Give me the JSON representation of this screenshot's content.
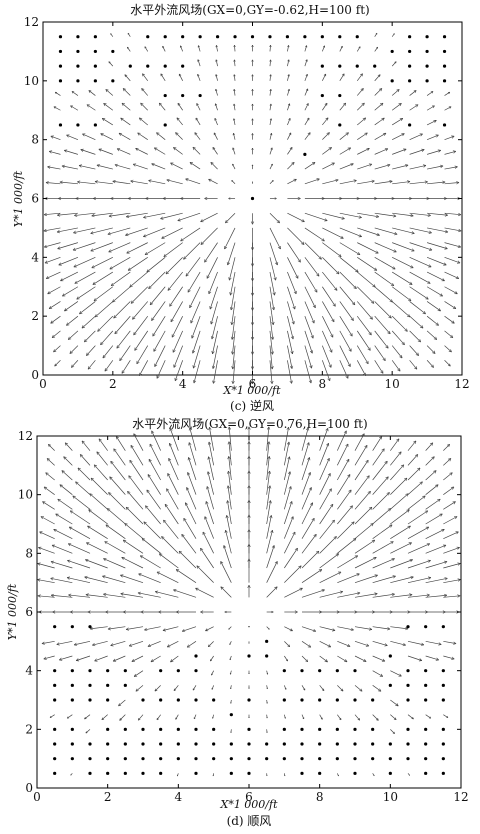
{
  "chart_data": [
    {
      "type": "quiver",
      "title": "水平外流风场(GX=0,GY=-0.62,H=100 ft)",
      "xlabel": "X*1 000/ft",
      "ylabel": "Y*1 000/ft",
      "caption": "(c) 逆风",
      "xlim": [
        0,
        12
      ],
      "ylim": [
        0,
        12
      ],
      "xticks": [
        "0",
        "2",
        "4",
        "6",
        "8",
        "10",
        "12"
      ],
      "yticks": [
        "0",
        "2",
        "4",
        "6",
        "8",
        "10",
        "12"
      ],
      "grid": false,
      "legend": "none",
      "field": {
        "grid_spacing": 0.5,
        "center": [
          6,
          6
        ],
        "gx": 0,
        "gy": -0.62,
        "pattern": "radial outflow from center; strongest arrows in lower half"
      },
      "zero_vector_points": [
        [
          0.5,
          11.5
        ],
        [
          1.0,
          11.5
        ],
        [
          1.5,
          11.5
        ],
        [
          3.0,
          11.5
        ],
        [
          3.5,
          11.5
        ],
        [
          4.0,
          11.5
        ],
        [
          4.5,
          11.5
        ],
        [
          5.0,
          11.5
        ],
        [
          5.5,
          11.5
        ],
        [
          6.0,
          11.5
        ],
        [
          6.5,
          11.5
        ],
        [
          7.0,
          11.5
        ],
        [
          7.5,
          11.5
        ],
        [
          8.0,
          11.5
        ],
        [
          8.5,
          11.5
        ],
        [
          9.0,
          11.5
        ],
        [
          10.5,
          11.5
        ],
        [
          11.0,
          11.5
        ],
        [
          11.5,
          11.5
        ],
        [
          0.5,
          11.0
        ],
        [
          1.0,
          11.0
        ],
        [
          1.5,
          11.0
        ],
        [
          2.0,
          11.0
        ],
        [
          10.0,
          11.0
        ],
        [
          10.5,
          11.0
        ],
        [
          11.0,
          11.0
        ],
        [
          11.5,
          11.0
        ],
        [
          0.5,
          10.5
        ],
        [
          1.0,
          10.5
        ],
        [
          1.5,
          10.5
        ],
        [
          2.5,
          10.5
        ],
        [
          3.0,
          10.5
        ],
        [
          3.5,
          10.5
        ],
        [
          4.0,
          10.5
        ],
        [
          8.0,
          10.5
        ],
        [
          8.5,
          10.5
        ],
        [
          9.0,
          10.5
        ],
        [
          9.5,
          10.5
        ],
        [
          10.5,
          10.5
        ],
        [
          11.0,
          10.5
        ],
        [
          11.5,
          10.5
        ],
        [
          0.5,
          10.0
        ],
        [
          1.0,
          10.0
        ],
        [
          1.5,
          10.0
        ],
        [
          2.0,
          10.0
        ],
        [
          10.0,
          10.0
        ],
        [
          10.5,
          10.0
        ],
        [
          11.0,
          10.0
        ],
        [
          11.5,
          10.0
        ],
        [
          3.5,
          9.5
        ],
        [
          4.0,
          9.5
        ],
        [
          4.5,
          9.5
        ],
        [
          8.0,
          9.5
        ],
        [
          8.5,
          9.5
        ],
        [
          0.5,
          8.5
        ],
        [
          1.0,
          8.5
        ],
        [
          1.5,
          8.5
        ],
        [
          3.5,
          8.5
        ],
        [
          8.5,
          8.5
        ],
        [
          10.5,
          8.5
        ],
        [
          11.5,
          8.5
        ],
        [
          7.5,
          7.5
        ],
        [
          6.0,
          6.0
        ]
      ]
    },
    {
      "type": "quiver",
      "title": "水平外流风场(GX=0,GY=0.76,H=100 ft)",
      "xlabel": "X*1 000/ft",
      "ylabel": "Y*1 000/ft",
      "caption": "(d) 顺风",
      "xlim": [
        0,
        12
      ],
      "ylim": [
        0,
        12
      ],
      "xticks": [
        "0",
        "2",
        "4",
        "6",
        "8",
        "10",
        "12"
      ],
      "yticks": [
        "0",
        "2",
        "4",
        "6",
        "8",
        "10",
        "12"
      ],
      "grid": false,
      "legend": "none",
      "field": {
        "grid_spacing": 0.5,
        "center": [
          6,
          6
        ],
        "gx": 0,
        "gy": 0.76,
        "pattern": "radial outflow from center; strongest arrows in upper half"
      },
      "zero_vector_points": [
        [
          0.5,
          5.5
        ],
        [
          1.0,
          5.5
        ],
        [
          1.5,
          5.5
        ],
        [
          10.5,
          5.5
        ],
        [
          11.0,
          5.5
        ],
        [
          11.5,
          5.5
        ],
        [
          6.5,
          5.0
        ],
        [
          4.5,
          4.5
        ],
        [
          6.0,
          4.5
        ],
        [
          6.5,
          4.5
        ],
        [
          10.0,
          4.5
        ],
        [
          0.5,
          4.0
        ],
        [
          1.0,
          4.0
        ],
        [
          1.5,
          4.0
        ],
        [
          2.0,
          4.0
        ],
        [
          2.5,
          4.0
        ],
        [
          3.5,
          4.0
        ],
        [
          4.0,
          4.0
        ],
        [
          4.5,
          4.0
        ],
        [
          7.0,
          4.0
        ],
        [
          7.5,
          4.0
        ],
        [
          8.0,
          4.0
        ],
        [
          8.5,
          4.0
        ],
        [
          9.0,
          4.0
        ],
        [
          10.5,
          4.0
        ],
        [
          11.0,
          4.0
        ],
        [
          11.5,
          4.0
        ],
        [
          0.5,
          3.5
        ],
        [
          1.0,
          3.5
        ],
        [
          1.5,
          3.5
        ],
        [
          2.0,
          3.5
        ],
        [
          2.5,
          3.5
        ],
        [
          10.0,
          3.5
        ],
        [
          10.5,
          3.5
        ],
        [
          11.0,
          3.5
        ],
        [
          11.5,
          3.5
        ],
        [
          0.5,
          3.0
        ],
        [
          1.0,
          3.0
        ],
        [
          1.5,
          3.0
        ],
        [
          2.0,
          3.0
        ],
        [
          3.0,
          3.0
        ],
        [
          3.5,
          3.0
        ],
        [
          4.0,
          3.0
        ],
        [
          4.5,
          3.0
        ],
        [
          5.0,
          3.0
        ],
        [
          6.0,
          3.0
        ],
        [
          7.0,
          3.0
        ],
        [
          7.5,
          3.0
        ],
        [
          8.0,
          3.0
        ],
        [
          8.5,
          3.0
        ],
        [
          9.0,
          3.0
        ],
        [
          9.5,
          3.0
        ],
        [
          10.5,
          3.0
        ],
        [
          11.0,
          3.0
        ],
        [
          11.5,
          3.0
        ],
        [
          5.5,
          2.5
        ],
        [
          0.5,
          2.0
        ],
        [
          1.0,
          2.0
        ],
        [
          2.0,
          2.0
        ],
        [
          2.5,
          2.0
        ],
        [
          3.0,
          2.0
        ],
        [
          3.5,
          2.0
        ],
        [
          4.0,
          2.0
        ],
        [
          4.5,
          2.0
        ],
        [
          5.0,
          2.0
        ],
        [
          6.0,
          2.0
        ],
        [
          7.0,
          2.0
        ],
        [
          7.5,
          2.0
        ],
        [
          8.0,
          2.0
        ],
        [
          8.5,
          2.0
        ],
        [
          9.0,
          2.0
        ],
        [
          9.5,
          2.0
        ],
        [
          10.5,
          2.0
        ],
        [
          11.0,
          2.0
        ],
        [
          11.5,
          2.0
        ],
        [
          0.5,
          1.5
        ],
        [
          1.0,
          1.5
        ],
        [
          1.5,
          1.5
        ],
        [
          2.0,
          1.5
        ],
        [
          2.5,
          1.5
        ],
        [
          3.0,
          1.5
        ],
        [
          3.5,
          1.5
        ],
        [
          4.0,
          1.5
        ],
        [
          4.5,
          1.5
        ],
        [
          5.0,
          1.5
        ],
        [
          5.5,
          1.5
        ],
        [
          6.0,
          1.5
        ],
        [
          6.5,
          1.5
        ],
        [
          7.0,
          1.5
        ],
        [
          7.5,
          1.5
        ],
        [
          8.0,
          1.5
        ],
        [
          8.5,
          1.5
        ],
        [
          9.0,
          1.5
        ],
        [
          9.5,
          1.5
        ],
        [
          10.0,
          1.5
        ],
        [
          10.5,
          1.5
        ],
        [
          11.0,
          1.5
        ],
        [
          11.5,
          1.5
        ],
        [
          0.5,
          1.0
        ],
        [
          1.0,
          1.0
        ],
        [
          1.5,
          1.0
        ],
        [
          2.0,
          1.0
        ],
        [
          2.5,
          1.0
        ],
        [
          3.0,
          1.0
        ],
        [
          3.5,
          1.0
        ],
        [
          4.0,
          1.0
        ],
        [
          4.5,
          1.0
        ],
        [
          5.0,
          1.0
        ],
        [
          5.5,
          1.0
        ],
        [
          6.0,
          1.0
        ],
        [
          6.5,
          1.0
        ],
        [
          7.0,
          1.0
        ],
        [
          7.5,
          1.0
        ],
        [
          8.0,
          1.0
        ],
        [
          8.5,
          1.0
        ],
        [
          9.0,
          1.0
        ],
        [
          9.5,
          1.0
        ],
        [
          10.0,
          1.0
        ],
        [
          10.5,
          1.0
        ],
        [
          11.0,
          1.0
        ],
        [
          11.5,
          1.0
        ],
        [
          0.5,
          0.5
        ],
        [
          1.5,
          0.5
        ],
        [
          2.0,
          0.5
        ],
        [
          2.5,
          0.5
        ],
        [
          3.0,
          0.5
        ],
        [
          3.5,
          0.5
        ],
        [
          4.5,
          0.5
        ],
        [
          5.5,
          0.5
        ],
        [
          6.0,
          0.5
        ],
        [
          7.5,
          0.5
        ],
        [
          8.0,
          0.5
        ],
        [
          9.0,
          0.5
        ],
        [
          10.0,
          0.5
        ],
        [
          11.0,
          0.5
        ],
        [
          11.5,
          0.5
        ]
      ]
    }
  ]
}
